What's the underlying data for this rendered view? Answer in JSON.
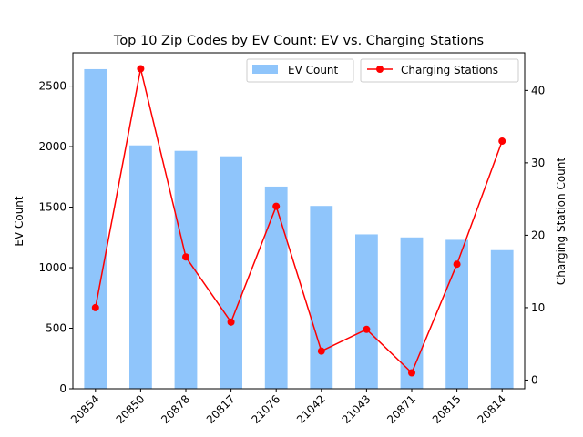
{
  "chart_data": {
    "type": "bar+line",
    "title": "Top 10 Zip Codes by EV Count: EV vs. Charging Stations",
    "xlabel": "",
    "ylabel_left": "EV Count",
    "ylabel_right": "Charging Station Count",
    "categories": [
      "20854",
      "20850",
      "20878",
      "20817",
      "21076",
      "21042",
      "21043",
      "20871",
      "20815",
      "20814"
    ],
    "bar_series": {
      "name": "EV Count",
      "color": "#8fc5fb",
      "values": [
        2640,
        2010,
        1965,
        1920,
        1670,
        1510,
        1275,
        1250,
        1230,
        1145
      ]
    },
    "line_series": {
      "name": "Charging Stations",
      "color": "#ff0000",
      "values": [
        10,
        43,
        17,
        8,
        24,
        4,
        7,
        1,
        16,
        33
      ]
    },
    "ylim_left": [
      0,
      2775
    ],
    "ylim_right": [
      -1.2,
      45.2
    ],
    "yticks_left": [
      0,
      500,
      1000,
      1500,
      2000,
      2500
    ],
    "yticks_right": [
      0,
      10,
      20,
      30,
      40
    ],
    "legend_placement": "top-right",
    "grid": false
  }
}
